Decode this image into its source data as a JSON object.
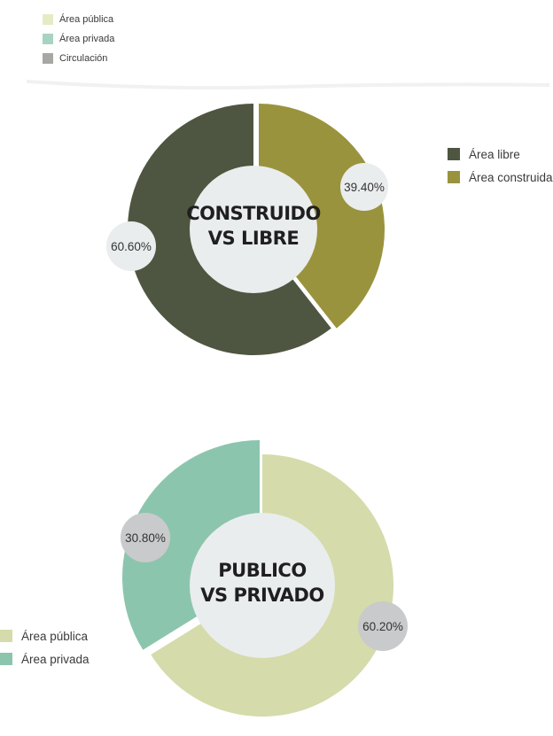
{
  "top_legend": {
    "items": [
      {
        "label": "Área pública",
        "color": "#e6ebc5"
      },
      {
        "label": "Área privada",
        "color": "#a8d3c0"
      },
      {
        "label": "Circulación",
        "color": "#a7a7a3"
      }
    ]
  },
  "chart_data": [
    {
      "type": "pie",
      "center_label": [
        "CONSTRUIDO",
        "VS LIBRE"
      ],
      "series": [
        {
          "name": "Área construida",
          "value": 39.4,
          "label": "39.40%",
          "color": "#9a933d"
        },
        {
          "name": "Área libre",
          "value": 60.6,
          "label": "60.60%",
          "color": "#4e5641"
        }
      ],
      "legend": {
        "placement": "right",
        "items": [
          {
            "label": "Área libre",
            "color": "#4e5641"
          },
          {
            "label": "Área construida",
            "color": "#9a933d"
          }
        ]
      }
    },
    {
      "type": "pie",
      "center_label": [
        "PUBLICO",
        "VS PRIVADO"
      ],
      "series": [
        {
          "name": "Área pública",
          "value": 60.2,
          "label": "60.20%",
          "color": "#d5dbaa"
        },
        {
          "name": "Área privada",
          "value": 30.8,
          "label": "30.80%",
          "color": "#8cc5ad"
        }
      ],
      "legend": {
        "placement": "left",
        "items": [
          {
            "label": "Área pública",
            "color": "#d5dbaa"
          },
          {
            "label": "Área privada",
            "color": "#8cc5ad"
          }
        ]
      }
    }
  ]
}
